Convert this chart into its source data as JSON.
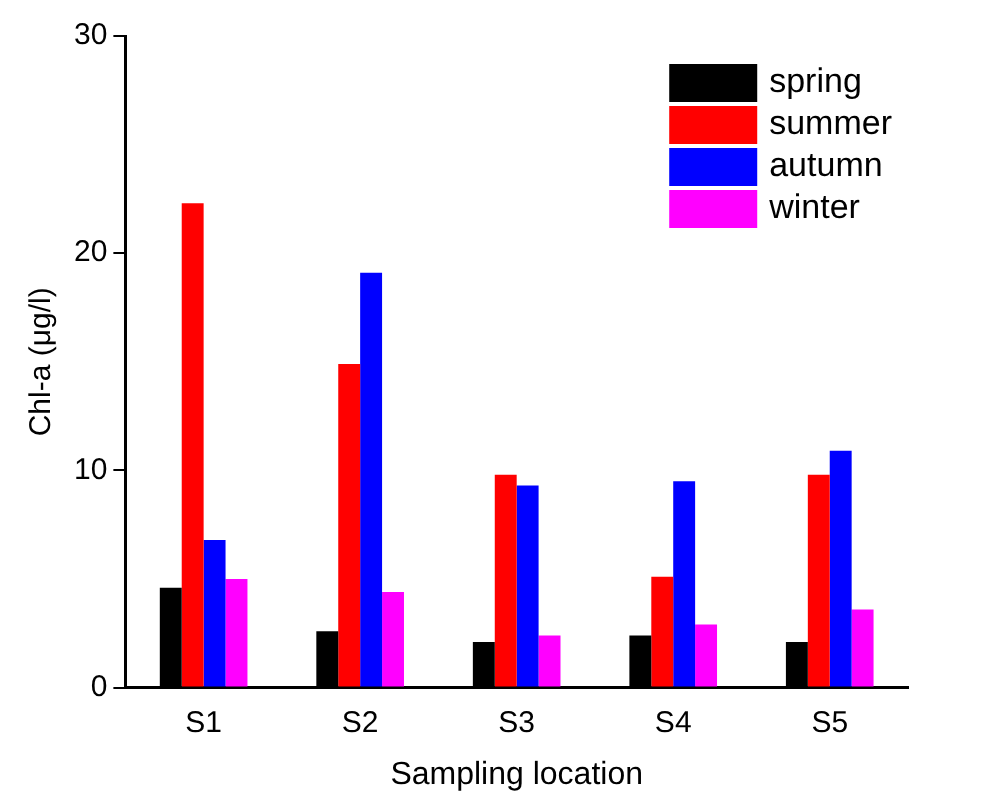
{
  "chart_data": {
    "type": "bar",
    "xlabel": "Sampling location",
    "ylabel": "Chl-a (μg/l)",
    "categories": [
      "S1",
      "S2",
      "S3",
      "S4",
      "S5"
    ],
    "series": [
      {
        "name": "spring",
        "color": "#000000",
        "values": [
          4.6,
          2.6,
          2.1,
          2.4,
          2.1
        ]
      },
      {
        "name": "summer",
        "color": "#ff0000",
        "values": [
          22.3,
          14.9,
          9.8,
          5.1,
          9.8
        ]
      },
      {
        "name": "autumn",
        "color": "#0000ff",
        "values": [
          6.8,
          19.1,
          9.3,
          9.5,
          10.9
        ]
      },
      {
        "name": "winter",
        "color": "#ff00ff",
        "values": [
          5.0,
          4.4,
          2.4,
          2.9,
          3.6
        ]
      }
    ],
    "ylim": [
      0,
      30
    ],
    "yticks": [
      0,
      10,
      20,
      30
    ],
    "grid": false,
    "legend": "top right"
  }
}
